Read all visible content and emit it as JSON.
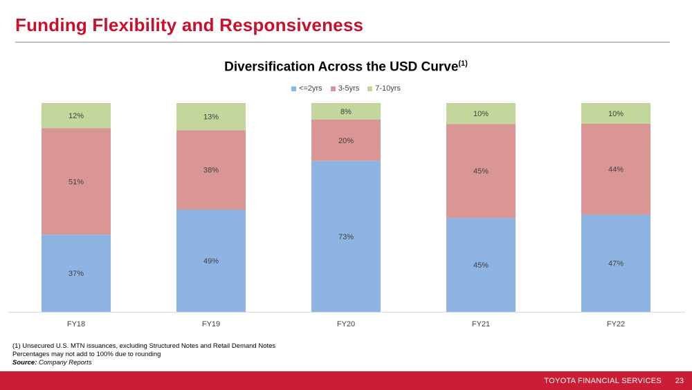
{
  "header": {
    "title": "Funding Flexibility and Responsiveness"
  },
  "chart_data": {
    "type": "bar",
    "stacked": true,
    "title": "Diversification Across the USD Curve",
    "title_superscript": "(1)",
    "categories": [
      "FY18",
      "FY19",
      "FY20",
      "FY21",
      "FY22"
    ],
    "series": [
      {
        "name": "<=2yrs",
        "color": "#8db4e2",
        "values": [
          37,
          49,
          73,
          45,
          47
        ],
        "labels": [
          "37%",
          "49%",
          "73%",
          "45%",
          "47%"
        ]
      },
      {
        "name": "3-5yrs",
        "color": "#d99694",
        "values": [
          51,
          38,
          20,
          45,
          44
        ],
        "labels": [
          "51%",
          "38%",
          "20%",
          "45%",
          "44%"
        ]
      },
      {
        "name": "7-10yrs",
        "color": "#c3d69b",
        "values": [
          12,
          13,
          8,
          10,
          10
        ],
        "labels": [
          "12%",
          "13%",
          "8%",
          "10%",
          "10%"
        ]
      }
    ],
    "ylim": [
      0,
      100
    ],
    "grid": false,
    "legend": "top-center"
  },
  "footnotes": {
    "note1": "(1)  Unsecured U.S. MTN issuances, excluding Structured Notes and Retail Demand Notes",
    "note2": "Percentages may not add to 100% due to rounding",
    "source_label": "Source:",
    "source_text": " Company Reports"
  },
  "footer": {
    "brand": "TOYOTA FINANCIAL SERVICES",
    "page_number": "23"
  }
}
